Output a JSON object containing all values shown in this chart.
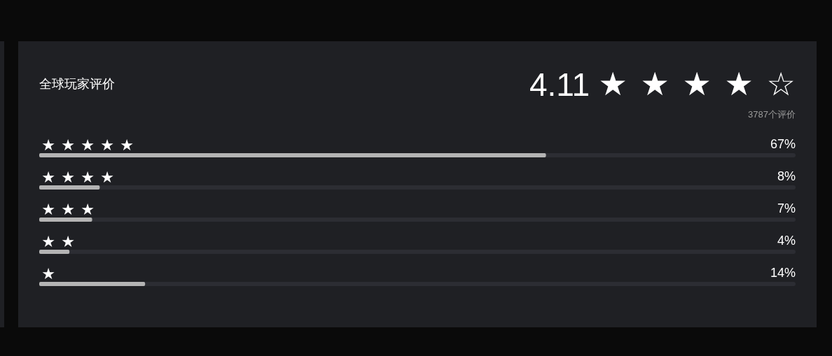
{
  "chart_data": {
    "type": "bar",
    "orientation": "horizontal",
    "title": "全球玩家评价",
    "categories": [
      "★★★★★",
      "★★★★",
      "★★★",
      "★★",
      "★"
    ],
    "values": [
      67,
      8,
      7,
      4,
      14
    ],
    "value_labels": [
      "67%",
      "8%",
      "7%",
      "4%",
      "14%"
    ],
    "color": "#b4b4b4",
    "xlim": [
      0,
      100
    ],
    "tick_labels": "y",
    "annotations": [
      "4.11",
      "★★★★☆",
      "3787个评价"
    ]
  }
}
